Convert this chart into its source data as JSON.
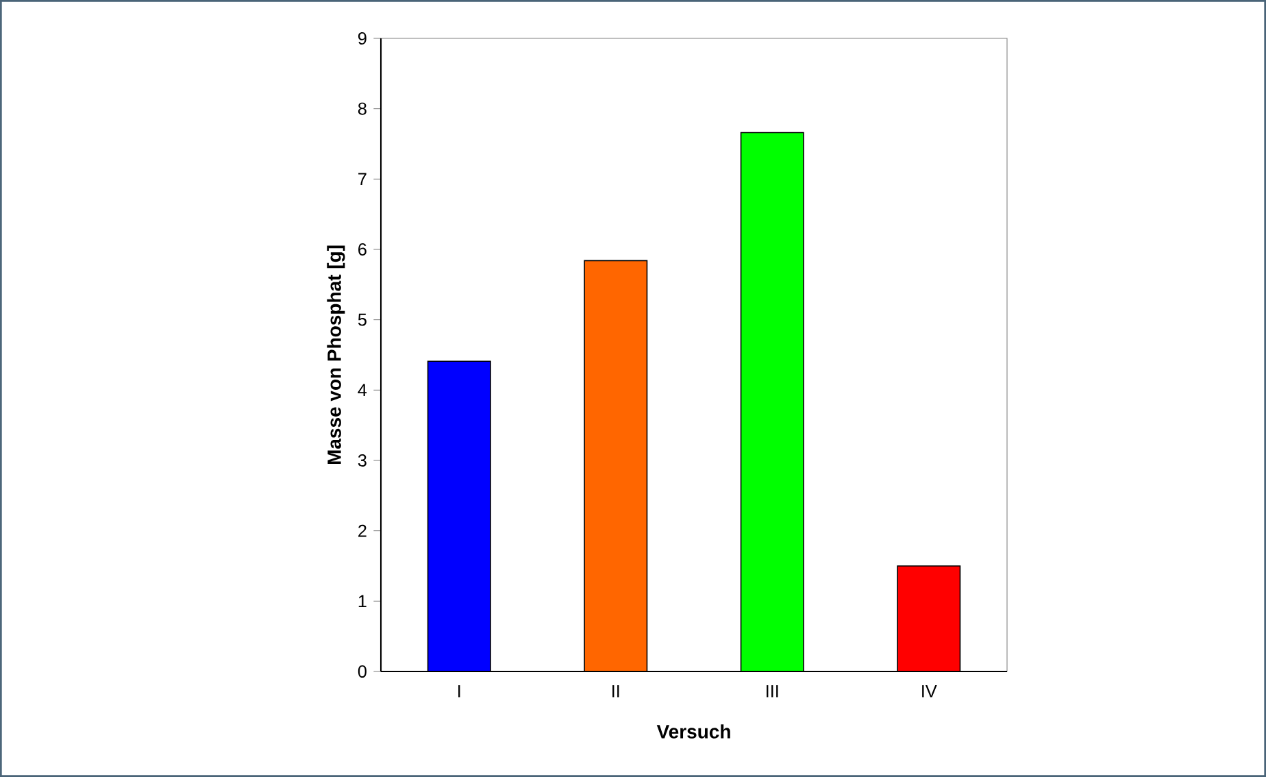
{
  "chart_data": {
    "type": "bar",
    "xlabel": "Versuch",
    "ylabel": "Masse von Phosphat [g]",
    "categories": [
      "I",
      "II",
      "III",
      "IV"
    ],
    "values": [
      4.41,
      5.84,
      7.66,
      1.5
    ],
    "colors": [
      "#0000ff",
      "#ff6600",
      "#00ff00",
      "#ff0000"
    ],
    "ylim": [
      0,
      9
    ],
    "yticks": [
      0,
      1,
      2,
      3,
      4,
      5,
      6,
      7,
      8,
      9
    ]
  }
}
